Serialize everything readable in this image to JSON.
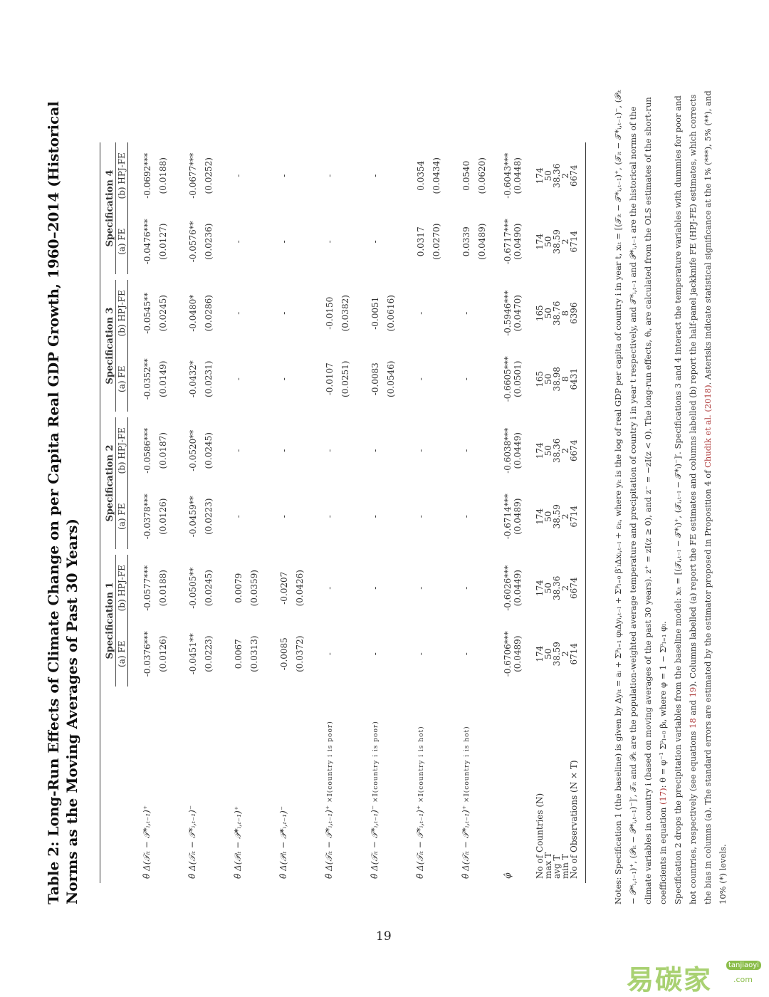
{
  "title": "Table 2: Long-Run Effects of Climate Change on per Capita Real GDP Growth, 1960–2014 (Historical Norms as the Moving Averages of Past 30 Years)",
  "specs": [
    "Specification 1",
    "Specification 2",
    "Specification 3",
    "Specification 4"
  ],
  "subheaders": [
    "(a) FE",
    "(b) HPJ-FE"
  ],
  "rows": [
    {
      "label": "θ̂ Δ(𝒯ᵢₜ − 𝒯*ᵢ,ₜ₋₁)⁺",
      "ind": "",
      "est": [
        "-0.0376***",
        "-0.0577***",
        "-0.0378***",
        "-0.0586***",
        "-0.0352**",
        "-0.0545**",
        "-0.0476***",
        "-0.0692***"
      ],
      "se": [
        "(0.0126)",
        "(0.0188)",
        "(0.0126)",
        "(0.0187)",
        "(0.0149)",
        "(0.0245)",
        "(0.0127)",
        "(0.0188)"
      ]
    },
    {
      "label": "θ̂ Δ(𝒯ᵢₜ − 𝒯*ᵢ,ₜ₋₁)⁻",
      "ind": "",
      "est": [
        "-0.0451**",
        "-0.0505**",
        "-0.0459**",
        "-0.0520**",
        "-0.0432*",
        "-0.0480*",
        "-0.0576**",
        "-0.0677***"
      ],
      "se": [
        "(0.0223)",
        "(0.0245)",
        "(0.0223)",
        "(0.0245)",
        "(0.0231)",
        "(0.0286)",
        "(0.0236)",
        "(0.0252)"
      ]
    },
    {
      "label": "θ̂ Δ(𝒫ᵢₜ − 𝒫*ᵢ,ₜ₋₁)⁺",
      "ind": "",
      "est": [
        "0.0067",
        "0.0079",
        "-",
        "-",
        "-",
        "-",
        "-",
        "-"
      ],
      "se": [
        "(0.0313)",
        "(0.0359)",
        "",
        "",
        "",
        "",
        "",
        ""
      ]
    },
    {
      "label": "θ̂ Δ(𝒫ᵢₜ − 𝒫*ᵢ,ₜ₋₁)⁻",
      "ind": "",
      "est": [
        "-0.0085",
        "-0.0207",
        "-",
        "-",
        "-",
        "-",
        "-",
        "-"
      ],
      "se": [
        "(0.0372)",
        "(0.0426)",
        "",
        "",
        "",
        "",
        "",
        ""
      ]
    },
    {
      "label": "θ̂ Δ(𝒯ᵢₜ − 𝒯*ᵢ,ₜ₋₁)⁺",
      "ind": "×𝕀(country i is poor)",
      "est": [
        "-",
        "-",
        "-",
        "-",
        "-0.0107",
        "-0.0150",
        "-",
        "-"
      ],
      "se": [
        "",
        "",
        "",
        "",
        "(0.0251)",
        "(0.0382)",
        "",
        ""
      ]
    },
    {
      "label": "θ̂ Δ(𝒯ᵢₜ − 𝒯*ᵢ,ₜ₋₁)⁻",
      "ind": "×𝕀(country i is poor)",
      "est": [
        "-",
        "-",
        "-",
        "-",
        "-0.0083",
        "-0.0051",
        "-",
        "-"
      ],
      "se": [
        "",
        "",
        "",
        "",
        "(0.0546)",
        "(0.0616)",
        "",
        ""
      ]
    },
    {
      "label": "θ̂ Δ(𝒯ᵢₜ − 𝒯*ᵢ,ₜ₋₁)⁺",
      "ind": "×𝕀(country i is hot)",
      "est": [
        "-",
        "-",
        "-",
        "-",
        "-",
        "-",
        "0.0317",
        "0.0354"
      ],
      "se": [
        "",
        "",
        "",
        "",
        "",
        "",
        "(0.0270)",
        "(0.0434)"
      ]
    },
    {
      "label": "θ̂ Δ(𝒯ᵢₜ − 𝒯*ᵢ,ₜ₋₁)⁺",
      "ind": "×𝕀(country i is hot)",
      "est": [
        "-",
        "-",
        "-",
        "-",
        "-",
        "-",
        "0.0339",
        "0.0540"
      ],
      "se": [
        "",
        "",
        "",
        "",
        "",
        "",
        "(0.0489)",
        "(0.0620)"
      ]
    }
  ],
  "phi": {
    "label": "φ̂",
    "est": [
      "-0.6706***",
      "-0.6026***",
      "-0.6714***",
      "-0.6038***",
      "-0.6605***",
      "-0.5946***",
      "-0.6717***",
      "-0.6043***"
    ],
    "se": [
      "(0.0489)",
      "(0.0449)",
      "(0.0489)",
      "(0.0449)",
      "(0.0501)",
      "(0.0470)",
      "(0.0490)",
      "(0.0448)"
    ]
  },
  "counts": [
    {
      "label": "No of Countries (N)",
      "vals": [
        "174",
        "174",
        "174",
        "174",
        "165",
        "165",
        "174",
        "174"
      ]
    },
    {
      "label": "max T",
      "vals": [
        "50",
        "50",
        "50",
        "50",
        "50",
        "50",
        "50",
        "50"
      ]
    },
    {
      "label": "avg T",
      "vals": [
        "38.59",
        "38.36",
        "38.59",
        "38.36",
        "38.98",
        "38.76",
        "38.59",
        "38.36"
      ]
    },
    {
      "label": "min T",
      "vals": [
        "2",
        "2",
        "2",
        "2",
        "8",
        "8",
        "2",
        "2"
      ]
    },
    {
      "label": "No of Observations (N × T)",
      "vals": [
        "6714",
        "6674",
        "6714",
        "6674",
        "6431",
        "6396",
        "6714",
        "6674"
      ]
    }
  ],
  "notes": {
    "p1a": "Notes: Specification 1 (the baseline) is given by Δyᵢₜ = aᵢ + Σᵖₗ₌₁ φₗΔyᵢ,ₜ₋ₗ + Σᵖₗ₌₀ β′ₗΔxᵢ,ₜ₋ₗ + εᵢₜ, where yᵢₜ is the log of real GDP per capita of country i in year t, xᵢₜ = [(𝒯ᵢₜ − 𝒯*ᵢ,ₜ₋₁)⁺, (𝒯ᵢₜ − 𝒯*ᵢ,ₜ₋₁)⁻, (𝒫ᵢₜ − 𝒫*ᵢ,ₜ₋₁)⁺, (𝒫ᵢₜ − 𝒫*ᵢ,ₜ₋₁)⁻]′, 𝒯ᵢₜ and 𝒫ᵢₜ are the population-weighted average temperature and precipitation of country i in year t respectively, and 𝒯*ᵢ,ₜ₋₁ and 𝒫*ᵢ,ₜ₋₁ are the historical norms of the climate variables in country i (based on moving averages of the past 30 years). z⁺ = zI(z ≥ 0), and z⁻ = −zI(z < 0). The long-run effects, θᵢ, are calculated from the OLS estimates of the short-run coefficients in equation ",
    "ref17": "(17)",
    "p1b": ": θ = φ⁻¹ Σᵖₗ₌₀ βₗ, where φ = 1 − Σᵖₗ₌₁ φₗ.",
    "p2a": "Specification 2 drops the precipitation variables from the baseline model: xᵢₜ = [(𝒯ᵢ,ₜ₋ₗ − 𝒯*ᵢ)⁺, (𝒯ᵢ,ₜ₋ₗ − 𝒯*ᵢ)⁻]′. Specifications 3 and 4 interact the temperature variables with dummies for poor and hot countries, respectively (see equations ",
    "ref18": "18",
    "and": " and ",
    "ref19": "19",
    "p2b": "). Columns labelled (a) report the FE estimates and columns labelled (b) report the half-panel jackknife FE (HPJ-FE) estimates, which corrects the bias in columns (a). The standard errors are estimated by the estimator proposed in Proposition 4 of ",
    "refChudik": "Chudik et al. (2018)",
    "p2c": ". Asterisks indicate statistical significance at the 1% (***), 5% (**), and 10% (*) levels."
  },
  "page_number": "19",
  "watermark": {
    "cn": "易碳家",
    "en": "tanjiaoyi",
    "dom": ".com",
    "color": "#8bbd4a"
  }
}
